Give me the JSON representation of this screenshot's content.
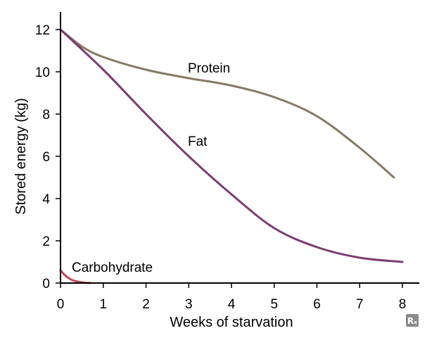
{
  "chart_data": {
    "type": "line",
    "title": "",
    "xlabel": "Weeks of starvation",
    "ylabel": "Stored energy (kg)",
    "xlim": [
      0,
      8
    ],
    "ylim": [
      0,
      12
    ],
    "xticks": [
      0,
      1,
      2,
      3,
      4,
      5,
      6,
      7,
      8
    ],
    "yticks": [
      0,
      2,
      4,
      6,
      8,
      10,
      12
    ],
    "x_tick_labels": [
      "0",
      "1",
      "2",
      "3",
      "4",
      "5",
      "6",
      "7",
      "8"
    ],
    "y_tick_labels": [
      "0",
      "2",
      "4",
      "6",
      "8",
      "10",
      "12"
    ],
    "grid": false,
    "legend": "none",
    "series": [
      {
        "name": "Protein",
        "color": "#857a63",
        "x": [
          0,
          0.5,
          1,
          2,
          3,
          4,
          5,
          6,
          7,
          7.8
        ],
        "y": [
          12,
          11.2,
          10.7,
          10.1,
          9.7,
          9.35,
          8.8,
          7.9,
          6.4,
          5.0
        ]
      },
      {
        "name": "Fat",
        "color": "#7b3c72",
        "x": [
          0,
          1,
          2,
          3,
          4,
          5,
          6,
          7,
          8
        ],
        "y": [
          12,
          10.1,
          8.0,
          6.0,
          4.2,
          2.6,
          1.7,
          1.2,
          1.0
        ]
      },
      {
        "name": "Carbohydrate",
        "color": "#c0475c",
        "x": [
          0,
          0.1,
          0.2,
          0.3,
          0.45,
          0.6,
          0.7
        ],
        "y": [
          0.6,
          0.38,
          0.22,
          0.12,
          0.05,
          0.01,
          0.0
        ]
      }
    ]
  },
  "watermark": "Rₓ"
}
